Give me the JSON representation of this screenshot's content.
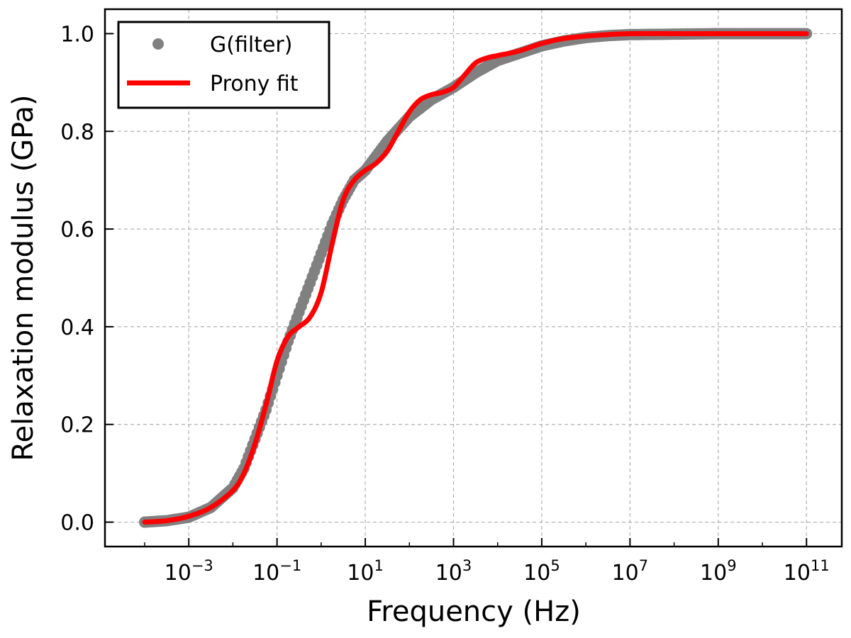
{
  "chart_data": {
    "type": "scatter",
    "xlabel": "Frequency (Hz)",
    "ylabel": "Relaxation modulus (GPa)",
    "xscale": "log",
    "xlim_log10": [
      -4.9,
      11.8
    ],
    "ylim": [
      -0.05,
      1.05
    ],
    "grid": true,
    "legend_position": "top-left",
    "x_tick_labels": [
      {
        "base": "10",
        "exp": "−3",
        "log10": -3
      },
      {
        "base": "10",
        "exp": "−1",
        "log10": -1
      },
      {
        "base": "10",
        "exp": "1",
        "log10": 1
      },
      {
        "base": "10",
        "exp": "3",
        "log10": 3
      },
      {
        "base": "10",
        "exp": "5",
        "log10": 5
      },
      {
        "base": "10",
        "exp": "7",
        "log10": 7
      },
      {
        "base": "10",
        "exp": "9",
        "log10": 9
      },
      {
        "base": "10",
        "exp": "11",
        "log10": 11
      }
    ],
    "y_ticks": [
      0.0,
      0.2,
      0.4,
      0.6,
      0.8,
      1.0
    ],
    "y_tick_labels": [
      "0.0",
      "0.2",
      "0.4",
      "0.6",
      "0.8",
      "1.0"
    ],
    "series": [
      {
        "name": "G(filter)",
        "kind": "scatter",
        "color": "#808080",
        "log10_x": [
          -4.0,
          -3.5,
          -3.0,
          -2.5,
          -2.0,
          -1.75,
          -1.5,
          -1.25,
          -1.0,
          -0.75,
          -0.5,
          -0.25,
          0.0,
          0.25,
          0.5,
          0.75,
          1.0,
          1.5,
          2.0,
          2.5,
          3.0,
          3.5,
          4.0,
          4.5,
          5.0,
          5.5,
          6.0,
          6.5,
          7.0,
          8.0,
          9.0,
          10.0,
          11.0
        ],
        "y": [
          0.0,
          0.003,
          0.01,
          0.03,
          0.07,
          0.11,
          0.17,
          0.23,
          0.3,
          0.37,
          0.43,
          0.49,
          0.55,
          0.61,
          0.66,
          0.7,
          0.72,
          0.78,
          0.83,
          0.865,
          0.89,
          0.92,
          0.945,
          0.96,
          0.975,
          0.985,
          0.992,
          0.996,
          0.998,
          0.999,
          1.0,
          1.0,
          1.0
        ]
      },
      {
        "name": "Prony fit",
        "kind": "line",
        "color": "#ff0000",
        "log10_x": [
          -4.0,
          -3.5,
          -3.0,
          -2.5,
          -2.0,
          -1.75,
          -1.5,
          -1.25,
          -1.0,
          -0.75,
          -0.5,
          -0.25,
          0.0,
          0.25,
          0.5,
          0.75,
          1.0,
          1.25,
          1.5,
          1.75,
          2.0,
          2.25,
          2.5,
          2.75,
          3.0,
          3.25,
          3.5,
          3.75,
          4.0,
          4.5,
          5.0,
          5.5,
          6.0,
          6.5,
          7.0,
          8.0,
          9.0,
          10.0,
          11.0
        ],
        "y": [
          0.0,
          0.003,
          0.012,
          0.03,
          0.065,
          0.1,
          0.16,
          0.24,
          0.33,
          0.38,
          0.4,
          0.42,
          0.47,
          0.57,
          0.66,
          0.7,
          0.72,
          0.735,
          0.76,
          0.8,
          0.84,
          0.865,
          0.875,
          0.88,
          0.89,
          0.915,
          0.94,
          0.95,
          0.955,
          0.965,
          0.98,
          0.99,
          0.995,
          0.998,
          1.0,
          1.0,
          1.0,
          1.0,
          1.0
        ]
      }
    ]
  }
}
